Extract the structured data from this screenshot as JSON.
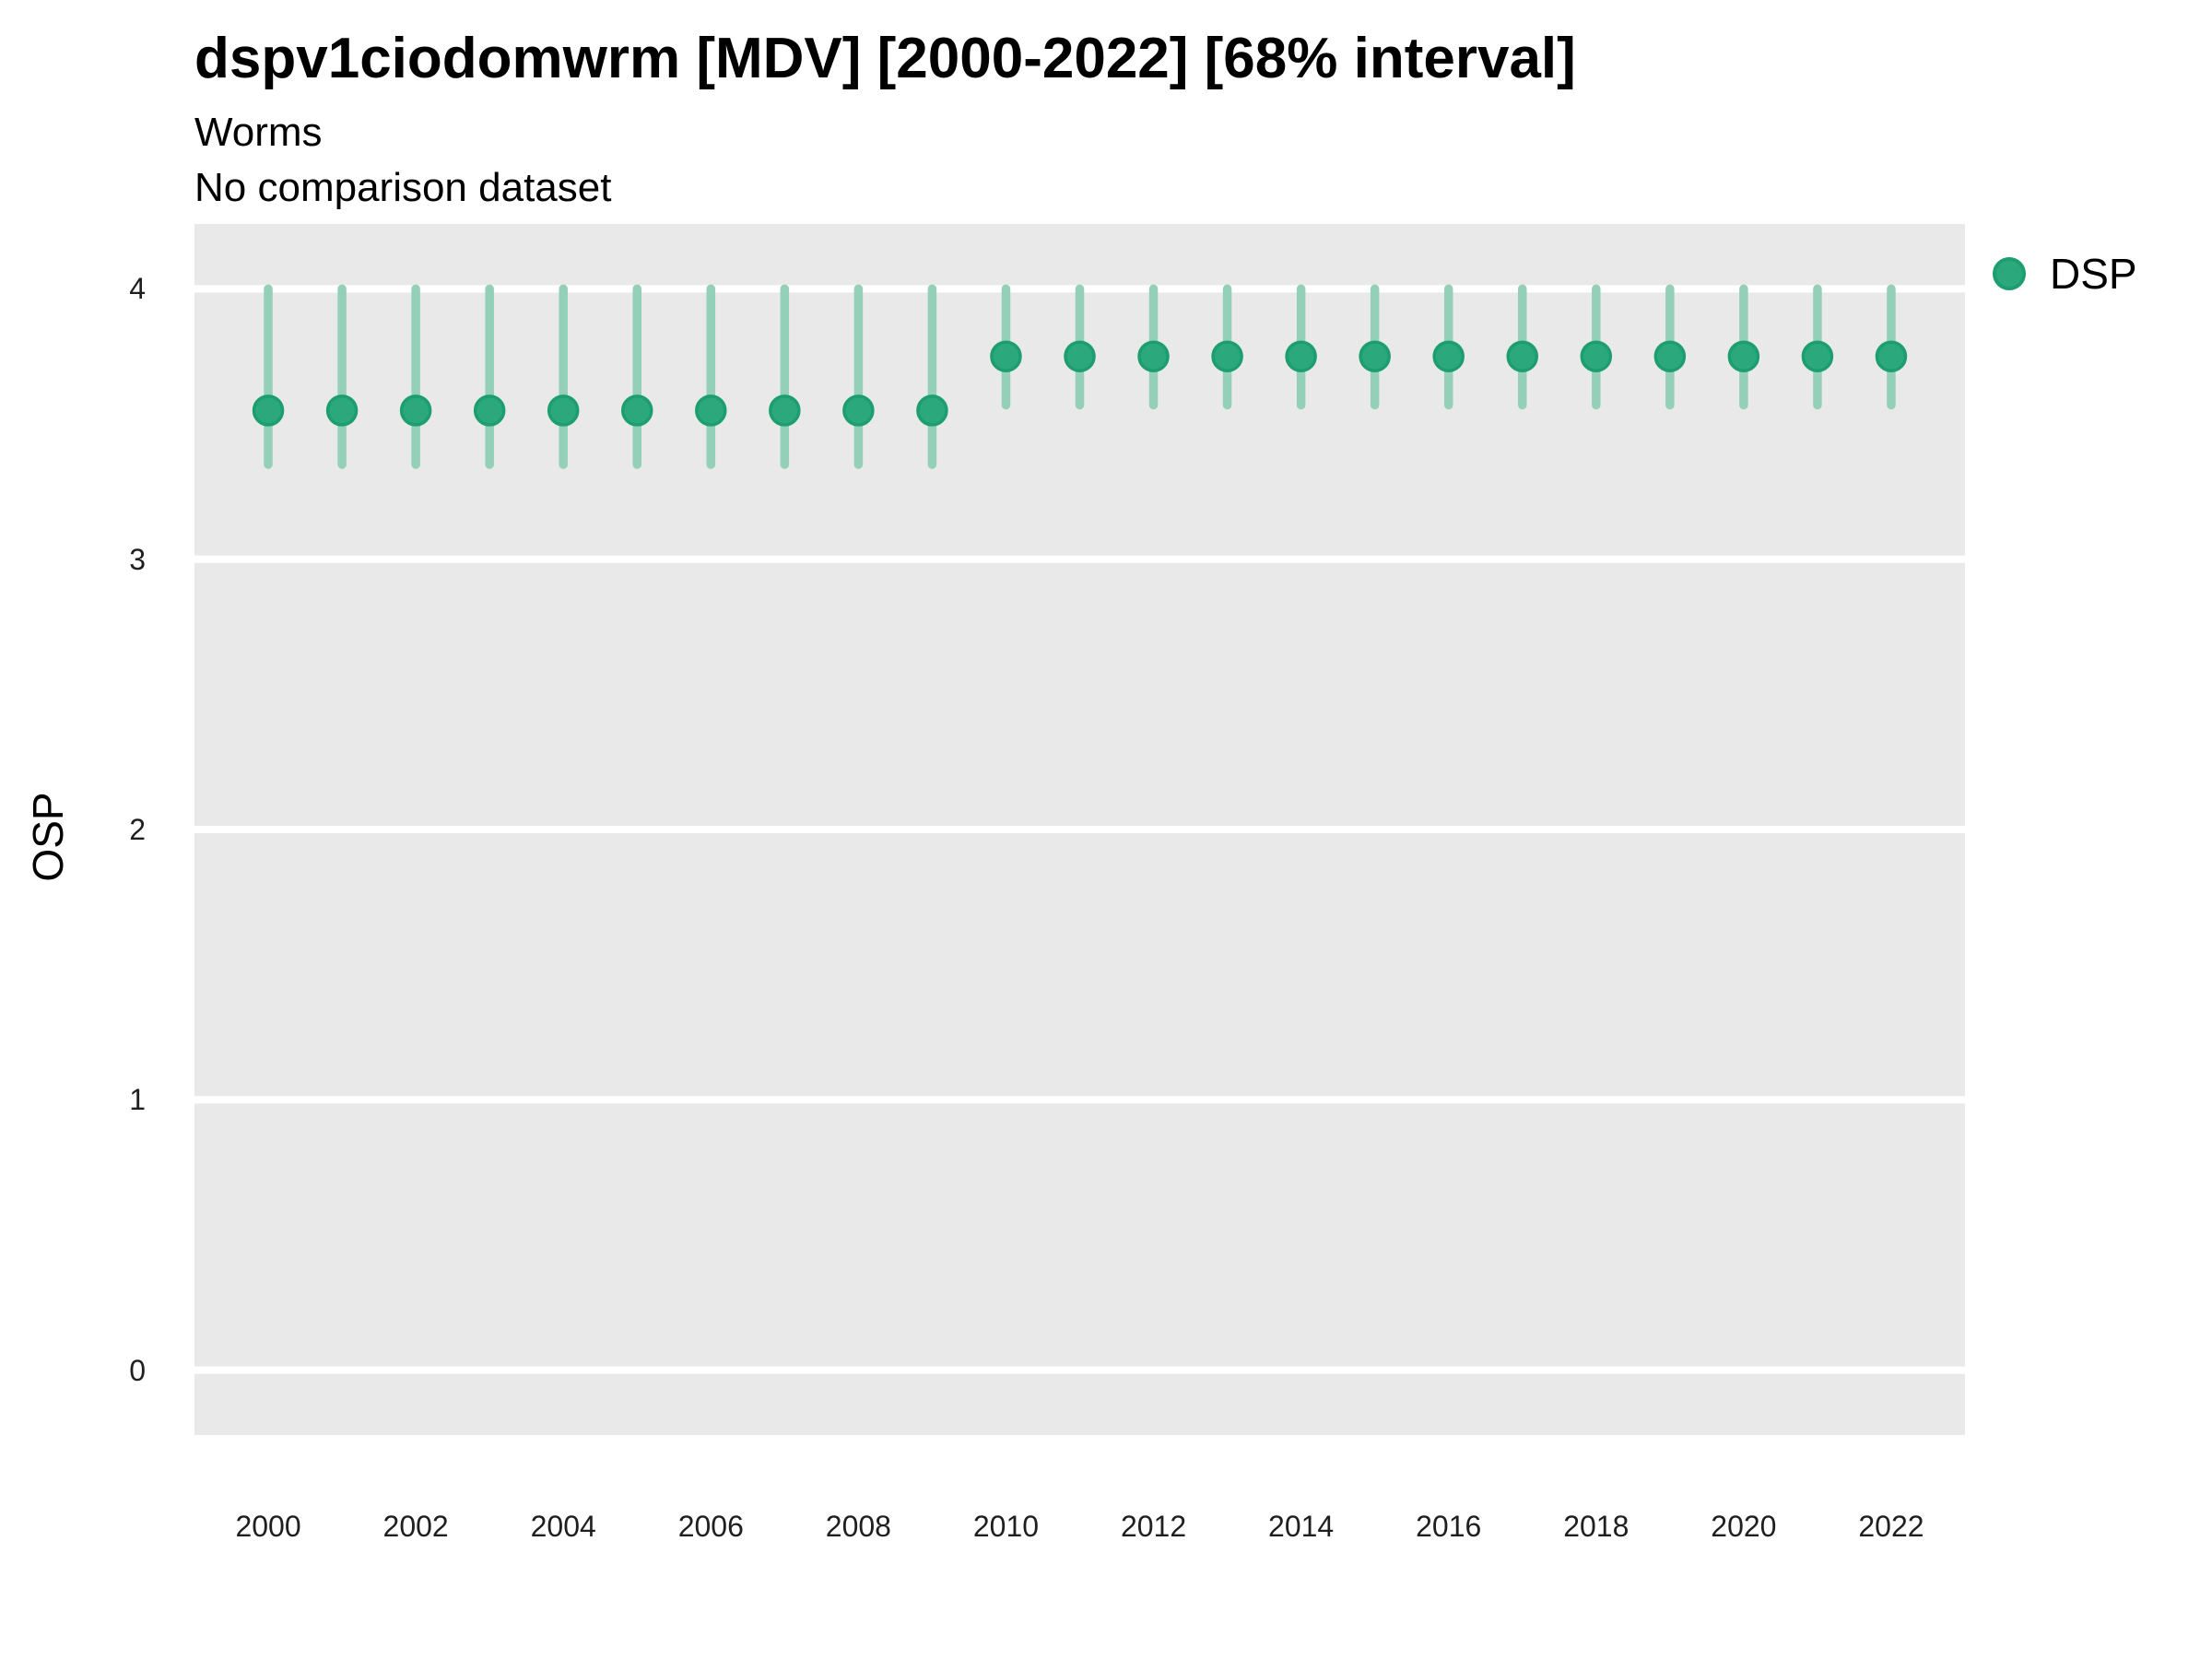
{
  "chart_data": {
    "type": "scatter",
    "variant": "pointrange",
    "title": "dspv1ciodomwrm [MDV] [2000-2022] [68% interval]",
    "subtitle": "Worms",
    "note": "No comparison dataset",
    "xlabel": "",
    "ylabel": "OSP",
    "interval_level": "68%",
    "xlim": [
      1999,
      2023
    ],
    "ylim": [
      -0.24,
      4.24
    ],
    "x_ticks": [
      2000,
      2002,
      2004,
      2006,
      2008,
      2010,
      2012,
      2014,
      2016,
      2018,
      2020,
      2022
    ],
    "y_ticks": [
      0,
      1,
      2,
      3,
      4
    ],
    "grid": "horizontal major gridlines, white on gray panel",
    "legend": {
      "position": "right",
      "entries": [
        {
          "label": "DSP",
          "color": "#2BA87C"
        }
      ]
    },
    "colors": {
      "point_fill": "#2BA87C",
      "point_stroke": "#1C9E70",
      "interval_bar": "#93D0B7",
      "panel_background": "#E9E9E9",
      "gridline": "#FFFFFF"
    },
    "series": [
      {
        "name": "DSP",
        "points": [
          {
            "x": 2000,
            "y": 3.55,
            "lo": 3.35,
            "hi": 4.0
          },
          {
            "x": 2001,
            "y": 3.55,
            "lo": 3.35,
            "hi": 4.0
          },
          {
            "x": 2002,
            "y": 3.55,
            "lo": 3.35,
            "hi": 4.0
          },
          {
            "x": 2003,
            "y": 3.55,
            "lo": 3.35,
            "hi": 4.0
          },
          {
            "x": 2004,
            "y": 3.55,
            "lo": 3.35,
            "hi": 4.0
          },
          {
            "x": 2005,
            "y": 3.55,
            "lo": 3.35,
            "hi": 4.0
          },
          {
            "x": 2006,
            "y": 3.55,
            "lo": 3.35,
            "hi": 4.0
          },
          {
            "x": 2007,
            "y": 3.55,
            "lo": 3.35,
            "hi": 4.0
          },
          {
            "x": 2008,
            "y": 3.55,
            "lo": 3.35,
            "hi": 4.0
          },
          {
            "x": 2009,
            "y": 3.55,
            "lo": 3.35,
            "hi": 4.0
          },
          {
            "x": 2010,
            "y": 3.75,
            "lo": 3.57,
            "hi": 4.0
          },
          {
            "x": 2011,
            "y": 3.75,
            "lo": 3.57,
            "hi": 4.0
          },
          {
            "x": 2012,
            "y": 3.75,
            "lo": 3.57,
            "hi": 4.0
          },
          {
            "x": 2013,
            "y": 3.75,
            "lo": 3.57,
            "hi": 4.0
          },
          {
            "x": 2014,
            "y": 3.75,
            "lo": 3.57,
            "hi": 4.0
          },
          {
            "x": 2015,
            "y": 3.75,
            "lo": 3.57,
            "hi": 4.0
          },
          {
            "x": 2016,
            "y": 3.75,
            "lo": 3.57,
            "hi": 4.0
          },
          {
            "x": 2017,
            "y": 3.75,
            "lo": 3.57,
            "hi": 4.0
          },
          {
            "x": 2018,
            "y": 3.75,
            "lo": 3.57,
            "hi": 4.0
          },
          {
            "x": 2019,
            "y": 3.75,
            "lo": 3.57,
            "hi": 4.0
          },
          {
            "x": 2020,
            "y": 3.75,
            "lo": 3.57,
            "hi": 4.0
          },
          {
            "x": 2021,
            "y": 3.75,
            "lo": 3.57,
            "hi": 4.0
          },
          {
            "x": 2022,
            "y": 3.75,
            "lo": 3.57,
            "hi": 4.0
          }
        ]
      }
    ]
  }
}
